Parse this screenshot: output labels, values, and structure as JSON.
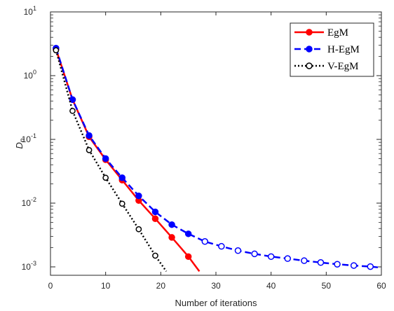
{
  "chart_data": {
    "type": "line",
    "xlabel": "Number of iterations",
    "ylabel": "D",
    "ylabel_subscript": "n",
    "xlim": [
      0,
      60
    ],
    "ylim": [
      0.00085,
      10
    ],
    "yscale": "log",
    "xticks": [
      0,
      10,
      20,
      30,
      40,
      50,
      60
    ],
    "yticks": [
      {
        "value": 0.001,
        "base": "10",
        "exp": "-3"
      },
      {
        "value": 0.01,
        "base": "10",
        "exp": "-2"
      },
      {
        "value": 0.1,
        "base": "10",
        "exp": "-1"
      },
      {
        "value": 1,
        "base": "10",
        "exp": "0"
      },
      {
        "value": 10,
        "base": "10",
        "exp": "1"
      }
    ],
    "grid": false,
    "legend_position": "top-right",
    "series": [
      {
        "name": "EgM",
        "color": "#ff0000",
        "line": "solid",
        "marker": "filled-circle",
        "x": [
          1,
          4,
          7,
          10,
          13,
          16,
          19,
          22,
          25,
          27
        ],
        "y": [
          2.6,
          0.42,
          0.11,
          0.048,
          0.023,
          0.011,
          0.0057,
          0.0029,
          0.00145,
          0.00085
        ],
        "marker_count": 9
      },
      {
        "name": "H-EgM",
        "color": "#0000ff",
        "line": "dashed",
        "marker": "circle-mixed",
        "x": [
          1,
          4,
          7,
          10,
          13,
          16,
          19,
          22,
          25,
          28,
          31,
          34,
          37,
          40,
          43,
          46,
          49,
          52,
          55,
          58,
          60
        ],
        "y": [
          2.7,
          0.42,
          0.115,
          0.05,
          0.025,
          0.013,
          0.0073,
          0.0046,
          0.0033,
          0.0025,
          0.0021,
          0.0018,
          0.0016,
          0.00145,
          0.00135,
          0.00125,
          0.00117,
          0.0011,
          0.00105,
          0.00101,
          0.00097
        ],
        "filled_count": 9
      },
      {
        "name": "V-EgM",
        "color": "#000000",
        "line": "dotted",
        "marker": "open-circle",
        "x": [
          1,
          4,
          7,
          10,
          13,
          16,
          19,
          21
        ],
        "y": [
          2.5,
          0.28,
          0.068,
          0.025,
          0.0098,
          0.0039,
          0.0015,
          0.00085
        ],
        "marker_count": 7
      }
    ]
  }
}
